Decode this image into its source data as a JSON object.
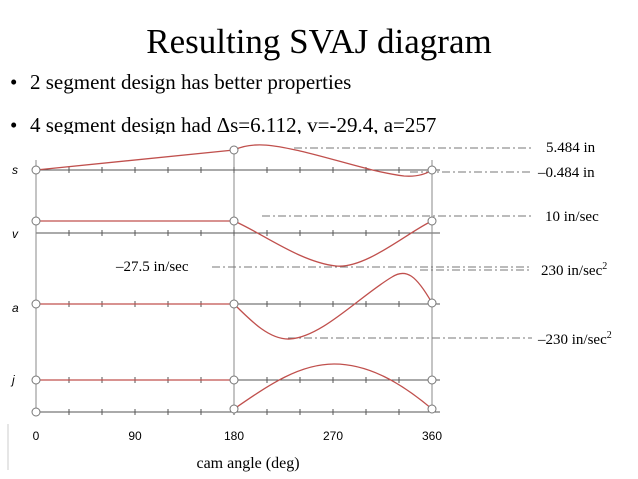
{
  "slide": {
    "title": "Resulting SVAJ diagram",
    "bullets": [
      "2 segment design has better properties",
      "4 segment design had Δs=6.112, v=-29.4, a=257"
    ],
    "bullet_marker": "•"
  },
  "chart_data": {
    "type": "line",
    "title": "",
    "xlabel": "cam angle (deg)",
    "xlim": [
      0,
      360
    ],
    "x_ticks": [
      "0",
      "90",
      "180",
      "270",
      "360"
    ],
    "series": [
      {
        "name": "s",
        "label": "s",
        "units": "in",
        "annotations": [
          "5.484 in",
          "–0.484 in"
        ],
        "extrema": [
          5.484,
          -0.484
        ]
      },
      {
        "name": "v",
        "label": "v",
        "units": "in/sec",
        "annotations": [
          "10 in/sec",
          "–27.5 in/sec"
        ],
        "extrema": [
          10,
          -27.5
        ]
      },
      {
        "name": "a",
        "label": "a",
        "units": "in/sec²",
        "annotations": [
          "230 in/sec",
          "–230 in/sec"
        ],
        "superscripts": [
          "2",
          "2"
        ],
        "extrema": [
          230,
          -230
        ]
      },
      {
        "name": "j",
        "label": "j",
        "units": "",
        "annotations": [],
        "extrema": []
      }
    ],
    "colors": {
      "curve": "#c0504d",
      "axis": "#444444",
      "leader": "#777777"
    }
  }
}
